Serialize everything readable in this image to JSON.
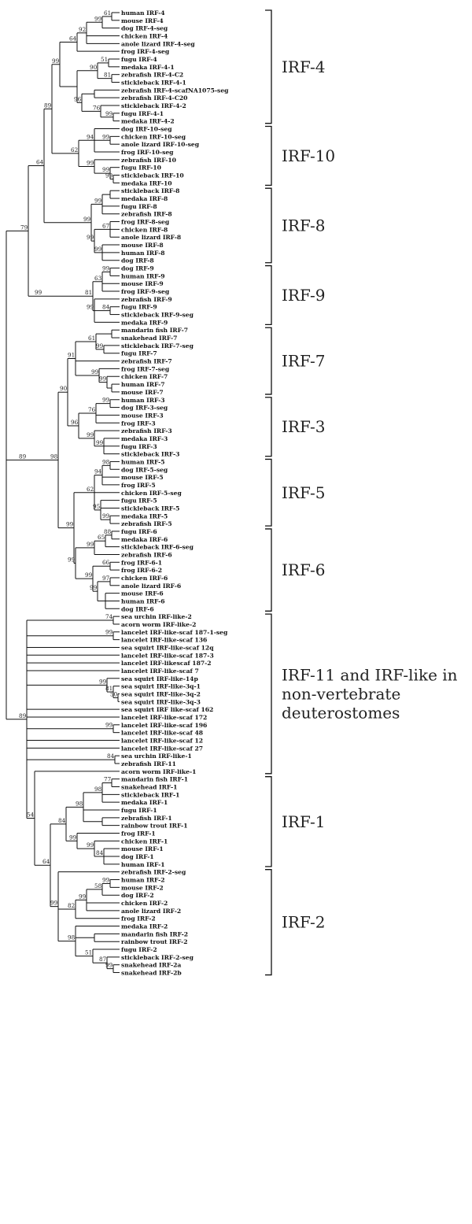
{
  "figure": "IRF phylogenetic tree",
  "groups": [
    {
      "label_lines": [
        "IRF-4"
      ],
      "taxa": [
        "human IRF-4",
        "mouse IRF-4",
        "dog IRF-4-seg",
        "chicken IRF-4",
        "anole lizard IRF-4-seg",
        "frog IRF-4-seg",
        "fugu IRF-4",
        "medaka IRF-4-1",
        "zebrafish IRF-4-C2",
        "stickleback IRF-4-1",
        "zebrafish IRF-4-scafNA1075-seg",
        "zebrafish IRF-4-C20",
        "stickleback IRF-4-2",
        "fugu IRF-4-1",
        "medaka IRF-4-2"
      ]
    },
    {
      "label_lines": [
        "IRF-10"
      ],
      "taxa": [
        "dog IRF-10-seg",
        "chicken IRF-10-seg",
        "anole lizard IRF-10-seg",
        "frog IRF-10-seg",
        "zebrafish IRF-10",
        "fugu IRF-10",
        "stickleback IRF-10",
        "medaka IRF-10"
      ]
    },
    {
      "label_lines": [
        "IRF-8"
      ],
      "taxa": [
        "stickleback IRF-8",
        "medaka IRF-8",
        "fugu IRF-8",
        "zebrafish IRF-8",
        "frog IRF-8-seg",
        "chicken IRF-8",
        "anole lizard IRF-8",
        "mouse IRF-8",
        "human IRF-8",
        "dog IRF-8"
      ]
    },
    {
      "label_lines": [
        "IRF-9"
      ],
      "taxa": [
        "dog IRF-9",
        "human IRF-9",
        "mouse IRF-9",
        "frog IRF-9-seg",
        "zebrafish IRF-9",
        "fugu IRF-9",
        "stickleback IRF-9-seg",
        "medaka IRF-9"
      ]
    },
    {
      "label_lines": [
        "IRF-7"
      ],
      "taxa": [
        "mandarin fish IRF-7",
        "snakehead IRF-7",
        "stickleback IRF-7-seg",
        "fugu IRF-7",
        "zebrafish IRF-7",
        "frog IRF-7-seg",
        "chicken IRF-7",
        "human IRF-7",
        "mouse IRF-7"
      ]
    },
    {
      "label_lines": [
        "IRF-3"
      ],
      "taxa": [
        "human IRF-3",
        "dog IRF-3-seg",
        "mouse IRF-3",
        "frog IRF-3",
        "zebrafish IRF-3",
        "medaka IRF-3",
        "fugu IRF-3",
        "stickleback IRF-3"
      ]
    },
    {
      "label_lines": [
        "IRF-5"
      ],
      "taxa": [
        "human IRF-5",
        "dog IRF-5-seg",
        "mouse IRF-5",
        "frog IRF-5",
        "chicken IRF-5-seg",
        "fugu IRF-5",
        "stickleback IRF-5",
        "medaka IRF-5",
        "zebrafish IRF-5"
      ]
    },
    {
      "label_lines": [
        "IRF-6"
      ],
      "taxa": [
        "fugu IRF-6",
        "medaka IRF-6",
        "stickleback IRF-6-seg",
        "zebrafish IRF-6",
        "frog IRF-6-1",
        "frog IRF-6-2",
        "chicken IRF-6",
        "anole lizard IRF-6",
        "mouse IRF-6",
        "human IRF-6",
        "dog IRF-6"
      ]
    },
    {
      "label_lines": [
        "IRF-11 and IRF-like in",
        "non-vertebrate",
        "deuterostomes"
      ],
      "taxa": [
        "sea urchin IRF-like-2",
        "acorn worm IRF-like-2",
        "lancelet IRF-like-scaf 187-1-seg",
        "lancelet IRF-like-scaf 136",
        "sea squirt IRF-like-scaf 12q",
        "lancelet IRF-like-scaf 187-3",
        "lancelet IRF-likescaf 187-2",
        "lancelet IRF-like-scaf 7",
        "sea squirt IRF-like-14p",
        "sea squirt IRF-like-3q-1",
        "sea squirt IRF-like-3q-2",
        "sea squirt IRF-like-3q-3",
        "sea squirt IRF like-scaf 162",
        "lancelet IRF-like-scaf 172",
        "lancelet IRF-like-scaf 196",
        "lancelet IRF-like-scaf 48",
        "lancelet IRF-like-scaf 12",
        "lancelet IRF-like-scaf 27",
        "sea urchin IRF-like-1",
        "zebrafish IRF-11",
        "acorn worm IRF-like-1"
      ]
    },
    {
      "label_lines": [
        "IRF-1"
      ],
      "taxa": [
        "mandarin fish IRF-1",
        "snakehead IRF-1",
        "stickleback IRF-1",
        "medaka IRF-1",
        "fugu IRF-1",
        "zebrafish IRF-1",
        "rainbow trout IRF-1",
        "frog IRF-1",
        "chicken IRF-1",
        "mouse IRF-1",
        "dog IRF-1",
        "human IRF-1"
      ]
    },
    {
      "label_lines": [
        "IRF-2"
      ],
      "taxa": [
        "zebrafish IRF-2-seg",
        "human IRF-2",
        "mouse IRF-2",
        "dog IRF-2",
        "chicken IRF-2",
        "anole lizard IRF-2",
        "frog IRF-2",
        "medaka IRF-2",
        "mandarin fish IRF-2",
        "rainbow trout IRF-2",
        "fugu IRF-2",
        "stickleback IRF-2-seg",
        "snakehead IRF-2a",
        "snakehead IRF-2b"
      ]
    }
  ],
  "bootstrap": [
    "61",
    "99",
    "81",
    "92",
    "64",
    "51",
    "90",
    "81",
    "99",
    "96",
    "76",
    "99",
    "66",
    "89",
    "64",
    "99",
    "94",
    "62",
    "99",
    "99",
    "99",
    "99",
    "99",
    "99",
    "67",
    "99",
    "99",
    "86",
    "79",
    "99",
    "63",
    "81",
    "99",
    "84",
    "82",
    "61",
    "99",
    "91",
    "90",
    "99",
    "99",
    "99",
    "76",
    "96",
    "99",
    "99",
    "89",
    "98",
    "94",
    "62",
    "95",
    "99",
    "65",
    "99",
    "88",
    "99",
    "99",
    "99",
    "66",
    "97",
    "99",
    "74",
    "99",
    "99",
    "81",
    "50",
    "99",
    "99",
    "84",
    "89",
    "54",
    "64",
    "77",
    "85",
    "98",
    "99",
    "84",
    "99",
    "98",
    "99",
    "84",
    "73",
    "99",
    "58",
    "99",
    "99",
    "82",
    "98",
    "51",
    "87",
    "99"
  ]
}
